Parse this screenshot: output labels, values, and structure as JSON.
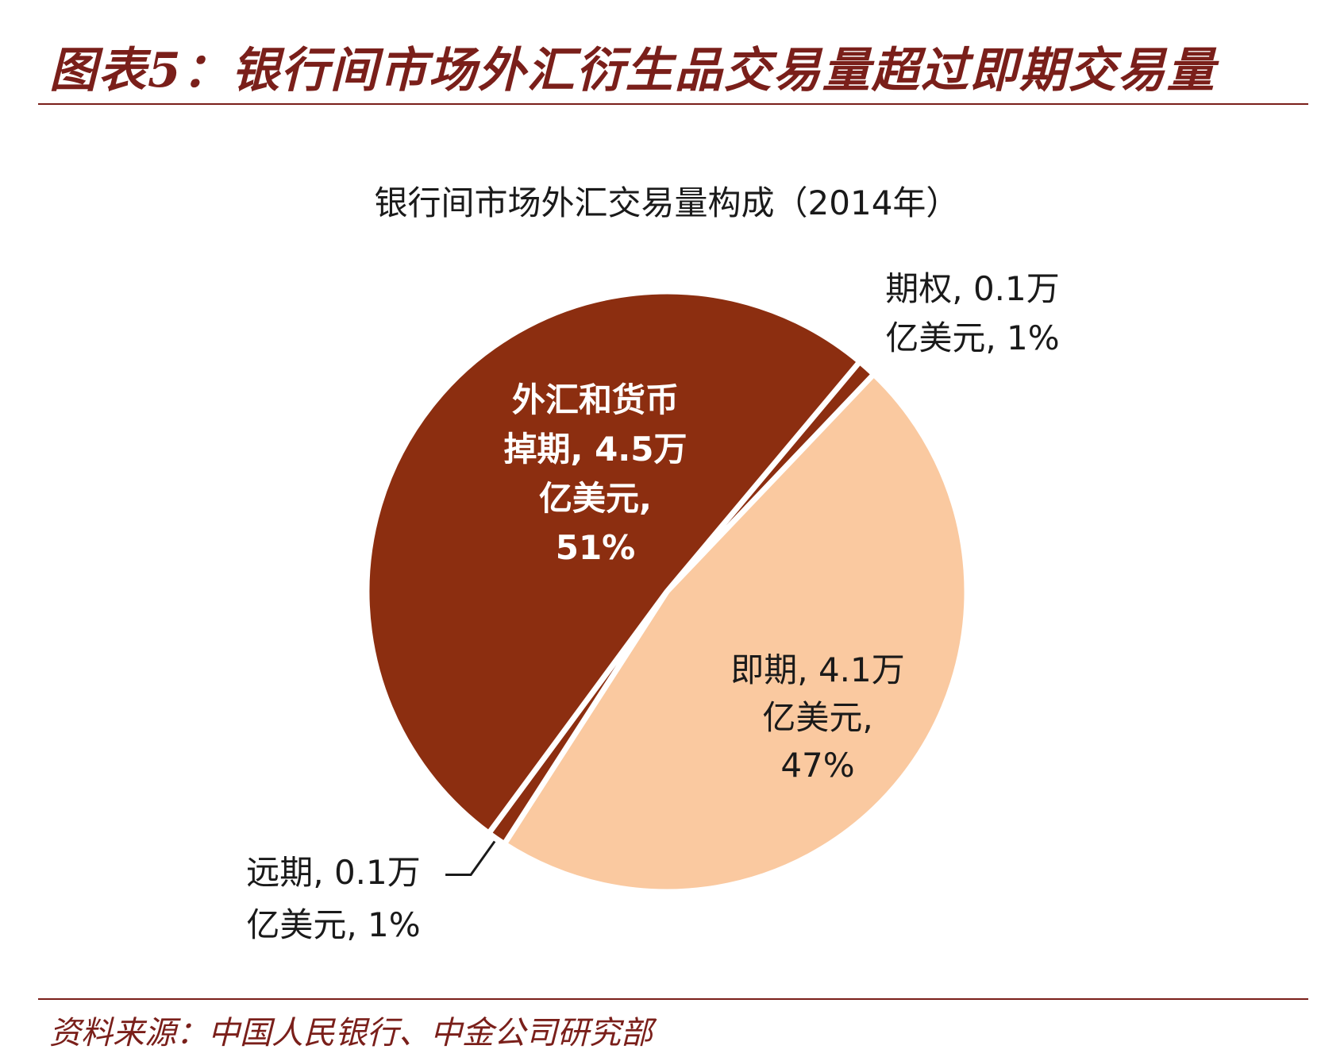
{
  "figure_title": "图表5：银行间市场外汇衍生品交易量超过即期交易量",
  "source": "资料来源：中国人民银行、中金公司研究部",
  "chart_data": {
    "type": "pie",
    "title": "银行间市场外汇交易量构成（2014年）",
    "unit": "万亿美元",
    "slices": [
      {
        "name": "期权",
        "value": 0.1,
        "percent": 1,
        "color": "#8c2e10",
        "label_lines": [
          "期权, 0.1万",
          "亿美元, 1%"
        ]
      },
      {
        "name": "即期",
        "value": 4.1,
        "percent": 47,
        "color": "#fac9a0",
        "label_lines": [
          "即期, 4.1万",
          "亿美元,",
          "47%"
        ]
      },
      {
        "name": "远期",
        "value": 0.1,
        "percent": 1,
        "color": "#8c2e10",
        "label_lines": [
          "远期, 0.1万",
          "亿美元, 1%"
        ]
      },
      {
        "name": "外汇和货币掉期",
        "value": 4.5,
        "percent": 51,
        "color": "#8c2e10",
        "label_lines": [
          "外汇和货币",
          "掉期, 4.5万",
          "亿美元,",
          "51%"
        ]
      }
    ]
  }
}
